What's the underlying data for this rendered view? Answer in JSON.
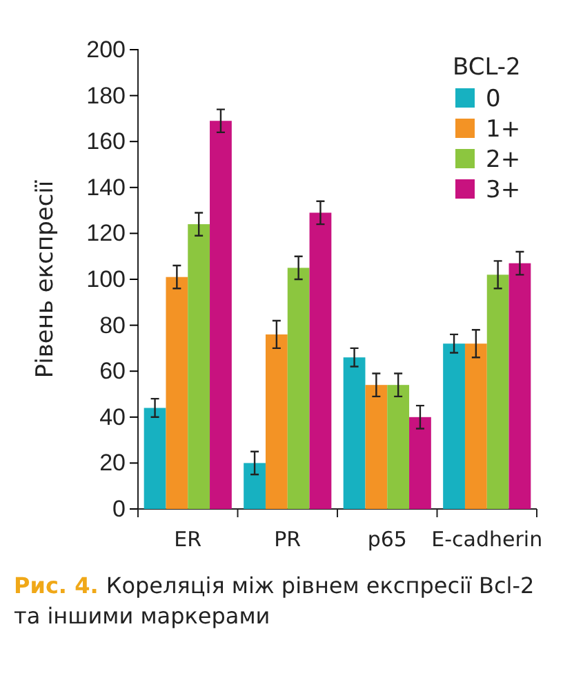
{
  "chart_data": {
    "type": "bar",
    "ylabel": "Рівень експресії",
    "legend_title": "BCL-2",
    "legend": "top right",
    "categories": [
      "ER",
      "PR",
      "p65",
      "E-cadherin"
    ],
    "ylim": [
      0,
      200
    ],
    "yticks": [
      0,
      20,
      40,
      60,
      80,
      100,
      120,
      140,
      160,
      180,
      200
    ],
    "series": [
      {
        "name": "0",
        "color": "#17b1c1",
        "values": [
          44,
          20,
          66,
          72
        ],
        "errors": [
          4,
          5,
          4,
          4
        ]
      },
      {
        "name": "1+",
        "color": "#f39325",
        "values": [
          101,
          76,
          54,
          72
        ],
        "errors": [
          5,
          6,
          5,
          6
        ]
      },
      {
        "name": "2+",
        "color": "#8cc63f",
        "values": [
          124,
          105,
          54,
          102
        ],
        "errors": [
          5,
          5,
          5,
          6
        ]
      },
      {
        "name": "3+",
        "color": "#c8127f",
        "values": [
          169,
          129,
          40,
          107
        ],
        "errors": [
          5,
          5,
          5,
          5
        ]
      }
    ],
    "annotations": [
      "Рис. 4.",
      "Кореляція між рівнем експресії Bcl-2 та іншими маркерами"
    ]
  }
}
